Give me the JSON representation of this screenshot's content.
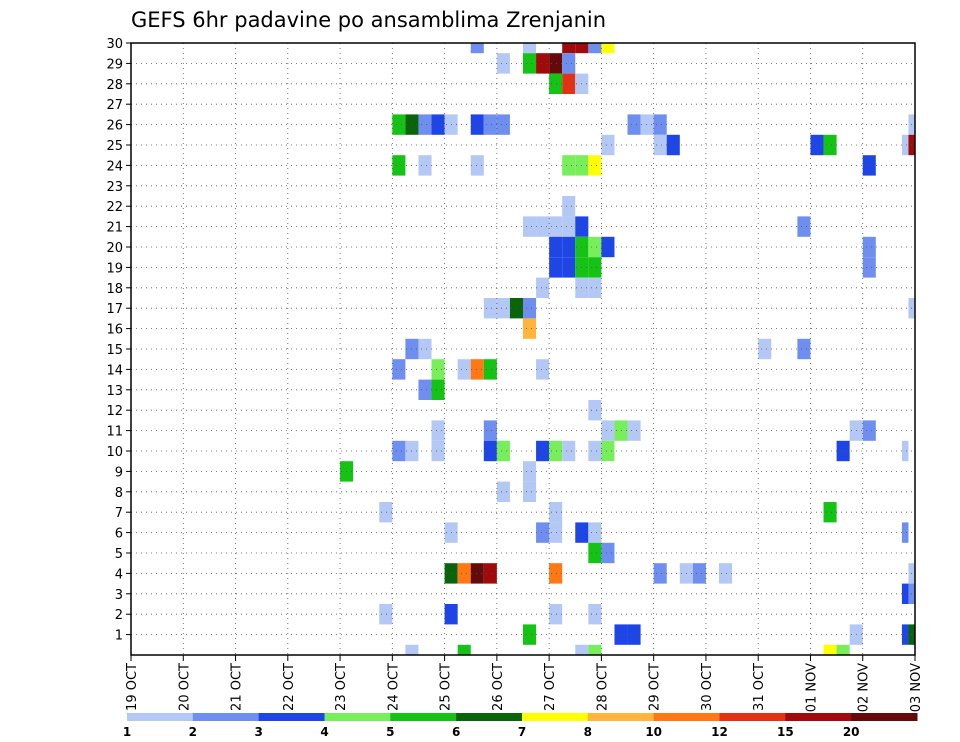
{
  "chart_data": {
    "type": "heatmap",
    "title": "GEFS 6hr padavine po ansamblima Zrenjanin",
    "xlabel": "",
    "ylabel": "",
    "x_labels": [
      "19 OCT",
      "20 OCT",
      "21 OCT",
      "22 OCT",
      "23 OCT",
      "24 OCT",
      "25 OCT",
      "26 OCT",
      "27 OCT",
      "28 OCT",
      "29 OCT",
      "30 OCT",
      "31 OCT",
      "01 NOV",
      "02 NOV",
      "03 NOV"
    ],
    "x_step_label": "6-hour steps (4 per day), step 0 = 19 OCT 00Z",
    "x_range": [
      0,
      60
    ],
    "y_labels": [
      "1",
      "2",
      "3",
      "4",
      "5",
      "6",
      "7",
      "8",
      "9",
      "10",
      "11",
      "12",
      "13",
      "14",
      "15",
      "16",
      "17",
      "18",
      "19",
      "20",
      "21",
      "22",
      "23",
      "24",
      "25",
      "26",
      "27",
      "28",
      "29",
      "30"
    ],
    "y_range": [
      0,
      30
    ],
    "grid": true,
    "legend": {
      "position": "bottom",
      "labels": [
        "1",
        "2",
        "3",
        "4",
        "5",
        "6",
        "7",
        "8",
        "10",
        "12",
        "15",
        "20"
      ],
      "colors": [
        "#b4c8f5",
        "#6e8ef0",
        "#1e46e6",
        "#78ee5a",
        "#14c314",
        "#0a640a",
        "#ffff00",
        "#ffb43c",
        "#ff7814",
        "#e13214",
        "#a00a0a",
        "#640a0a"
      ]
    },
    "cells": [
      {
        "member": 30,
        "step": 26.5,
        "value": 2
      },
      {
        "member": 30,
        "step": 30.5,
        "value": 1
      },
      {
        "member": 30,
        "step": 33.5,
        "value": 15
      },
      {
        "member": 30,
        "step": 34.5,
        "value": 15
      },
      {
        "member": 30,
        "step": 35.5,
        "value": 2
      },
      {
        "member": 30,
        "step": 36.5,
        "value": 7
      },
      {
        "member": 29,
        "step": 28.5,
        "value": 1
      },
      {
        "member": 29,
        "step": 30.5,
        "value": 5
      },
      {
        "member": 29,
        "step": 31.5,
        "value": 15
      },
      {
        "member": 29,
        "step": 32.5,
        "value": 20
      },
      {
        "member": 29,
        "step": 33.5,
        "value": 2
      },
      {
        "member": 28,
        "step": 32.5,
        "value": 5
      },
      {
        "member": 28,
        "step": 33.5,
        "value": 12
      },
      {
        "member": 28,
        "step": 34.5,
        "value": 1
      },
      {
        "member": 26,
        "step": 20.5,
        "value": 5
      },
      {
        "member": 26,
        "step": 21.5,
        "value": 6
      },
      {
        "member": 26,
        "step": 22.5,
        "value": 2
      },
      {
        "member": 26,
        "step": 23.5,
        "value": 3
      },
      {
        "member": 26,
        "step": 24.5,
        "value": 1
      },
      {
        "member": 26,
        "step": 26.5,
        "value": 3
      },
      {
        "member": 26,
        "step": 27.5,
        "value": 2
      },
      {
        "member": 26,
        "step": 28.5,
        "value": 2
      },
      {
        "member": 26,
        "step": 38.5,
        "value": 2
      },
      {
        "member": 26,
        "step": 39.5,
        "value": 1
      },
      {
        "member": 26,
        "step": 40.5,
        "value": 2
      },
      {
        "member": 26,
        "step": 59.75,
        "value": 1
      },
      {
        "member": 25,
        "step": 36.5,
        "value": 1
      },
      {
        "member": 25,
        "step": 40.5,
        "value": 1
      },
      {
        "member": 25,
        "step": 41.5,
        "value": 3
      },
      {
        "member": 25,
        "step": 52.5,
        "value": 3
      },
      {
        "member": 25,
        "step": 53.5,
        "value": 5
      },
      {
        "member": 25,
        "step": 59.25,
        "value": 1
      },
      {
        "member": 25,
        "step": 59.75,
        "value": 15
      },
      {
        "member": 24,
        "step": 20.5,
        "value": 5
      },
      {
        "member": 24,
        "step": 22.5,
        "value": 1
      },
      {
        "member": 24,
        "step": 26.5,
        "value": 1
      },
      {
        "member": 24,
        "step": 33.5,
        "value": 4
      },
      {
        "member": 24,
        "step": 34.5,
        "value": 4
      },
      {
        "member": 24,
        "step": 35.5,
        "value": 7
      },
      {
        "member": 24,
        "step": 56.5,
        "value": 3
      },
      {
        "member": 22,
        "step": 33.5,
        "value": 1
      },
      {
        "member": 21,
        "step": 30.5,
        "value": 1
      },
      {
        "member": 21,
        "step": 31.5,
        "value": 1
      },
      {
        "member": 21,
        "step": 32.5,
        "value": 1
      },
      {
        "member": 21,
        "step": 33.5,
        "value": 1
      },
      {
        "member": 21,
        "step": 34.5,
        "value": 3
      },
      {
        "member": 21,
        "step": 51.5,
        "value": 2
      },
      {
        "member": 20,
        "step": 32.5,
        "value": 3
      },
      {
        "member": 20,
        "step": 33.5,
        "value": 3
      },
      {
        "member": 20,
        "step": 34.5,
        "value": 5
      },
      {
        "member": 20,
        "step": 35.5,
        "value": 4
      },
      {
        "member": 20,
        "step": 36.5,
        "value": 3
      },
      {
        "member": 20,
        "step": 56.5,
        "value": 2
      },
      {
        "member": 19,
        "step": 32.5,
        "value": 3
      },
      {
        "member": 19,
        "step": 33.5,
        "value": 3
      },
      {
        "member": 19,
        "step": 34.5,
        "value": 5
      },
      {
        "member": 19,
        "step": 35.5,
        "value": 5
      },
      {
        "member": 19,
        "step": 56.5,
        "value": 2
      },
      {
        "member": 18,
        "step": 31.5,
        "value": 1
      },
      {
        "member": 18,
        "step": 34.5,
        "value": 1
      },
      {
        "member": 18,
        "step": 35.5,
        "value": 1
      },
      {
        "member": 17,
        "step": 27.5,
        "value": 1
      },
      {
        "member": 17,
        "step": 28.5,
        "value": 1
      },
      {
        "member": 17,
        "step": 29.5,
        "value": 6
      },
      {
        "member": 17,
        "step": 30.5,
        "value": 2
      },
      {
        "member": 17,
        "step": 59.75,
        "value": 1
      },
      {
        "member": 16,
        "step": 30.5,
        "value": 8
      },
      {
        "member": 15,
        "step": 21.5,
        "value": 2
      },
      {
        "member": 15,
        "step": 22.5,
        "value": 1
      },
      {
        "member": 15,
        "step": 48.5,
        "value": 1
      },
      {
        "member": 15,
        "step": 51.5,
        "value": 2
      },
      {
        "member": 14,
        "step": 20.5,
        "value": 2
      },
      {
        "member": 14,
        "step": 23.5,
        "value": 4
      },
      {
        "member": 14,
        "step": 25.5,
        "value": 1
      },
      {
        "member": 14,
        "step": 26.5,
        "value": 10
      },
      {
        "member": 14,
        "step": 27.5,
        "value": 5
      },
      {
        "member": 14,
        "step": 31.5,
        "value": 1
      },
      {
        "member": 13,
        "step": 22.5,
        "value": 2
      },
      {
        "member": 13,
        "step": 23.5,
        "value": 5
      },
      {
        "member": 12,
        "step": 35.5,
        "value": 1
      },
      {
        "member": 11,
        "step": 23.5,
        "value": 1
      },
      {
        "member": 11,
        "step": 27.5,
        "value": 2
      },
      {
        "member": 11,
        "step": 36.5,
        "value": 1
      },
      {
        "member": 11,
        "step": 37.5,
        "value": 4
      },
      {
        "member": 11,
        "step": 38.5,
        "value": 1
      },
      {
        "member": 11,
        "step": 56.5,
        "value": 2
      },
      {
        "member": 11,
        "step": 55.5,
        "value": 1
      },
      {
        "member": 10,
        "step": 20.5,
        "value": 2
      },
      {
        "member": 10,
        "step": 21.5,
        "value": 1
      },
      {
        "member": 10,
        "step": 23.5,
        "value": 1
      },
      {
        "member": 10,
        "step": 27.5,
        "value": 3
      },
      {
        "member": 10,
        "step": 28.5,
        "value": 4
      },
      {
        "member": 10,
        "step": 31.5,
        "value": 3
      },
      {
        "member": 10,
        "step": 32.5,
        "value": 4
      },
      {
        "member": 10,
        "step": 33.5,
        "value": 1
      },
      {
        "member": 10,
        "step": 35.5,
        "value": 1
      },
      {
        "member": 10,
        "step": 36.5,
        "value": 4
      },
      {
        "member": 10,
        "step": 54.5,
        "value": 3
      },
      {
        "member": 10,
        "step": 59.25,
        "value": 1
      },
      {
        "member": 9,
        "step": 16.5,
        "value": 5
      },
      {
        "member": 9,
        "step": 30.5,
        "value": 1
      },
      {
        "member": 8,
        "step": 28.5,
        "value": 1
      },
      {
        "member": 8,
        "step": 30.5,
        "value": 1
      },
      {
        "member": 7,
        "step": 19.5,
        "value": 1
      },
      {
        "member": 7,
        "step": 32.5,
        "value": 1
      },
      {
        "member": 7,
        "step": 53.5,
        "value": 5
      },
      {
        "member": 6,
        "step": 24.5,
        "value": 1
      },
      {
        "member": 6,
        "step": 31.5,
        "value": 2
      },
      {
        "member": 6,
        "step": 32.5,
        "value": 1
      },
      {
        "member": 6,
        "step": 34.5,
        "value": 3
      },
      {
        "member": 6,
        "step": 35.5,
        "value": 1
      },
      {
        "member": 6,
        "step": 59.25,
        "value": 2
      },
      {
        "member": 5,
        "step": 35.5,
        "value": 5
      },
      {
        "member": 5,
        "step": 36.5,
        "value": 2
      },
      {
        "member": 4,
        "step": 24.5,
        "value": 6
      },
      {
        "member": 4,
        "step": 25.5,
        "value": 10
      },
      {
        "member": 4,
        "step": 26.5,
        "value": 20
      },
      {
        "member": 4,
        "step": 27.5,
        "value": 15
      },
      {
        "member": 4,
        "step": 32.5,
        "value": 10
      },
      {
        "member": 4,
        "step": 40.5,
        "value": 2
      },
      {
        "member": 4,
        "step": 42.5,
        "value": 1
      },
      {
        "member": 4,
        "step": 43.5,
        "value": 2
      },
      {
        "member": 4,
        "step": 45.5,
        "value": 1
      },
      {
        "member": 4,
        "step": 59.75,
        "value": 1
      },
      {
        "member": 3,
        "step": 59.25,
        "value": 3
      },
      {
        "member": 3,
        "step": 59.75,
        "value": 2
      },
      {
        "member": 2,
        "step": 19.5,
        "value": 1
      },
      {
        "member": 2,
        "step": 24.5,
        "value": 3
      },
      {
        "member": 2,
        "step": 32.5,
        "value": 1
      },
      {
        "member": 2,
        "step": 35.5,
        "value": 1
      },
      {
        "member": 1,
        "step": 30.5,
        "value": 5
      },
      {
        "member": 1,
        "step": 37.5,
        "value": 3
      },
      {
        "member": 1,
        "step": 38.5,
        "value": 3
      },
      {
        "member": 1,
        "step": 55.5,
        "value": 1
      },
      {
        "member": 1,
        "step": 59.25,
        "value": 3
      },
      {
        "member": 1,
        "step": 59.75,
        "value": 6
      },
      {
        "member": 0,
        "step": 21.5,
        "value": 1
      },
      {
        "member": 0,
        "step": 25.5,
        "value": 5
      },
      {
        "member": 0,
        "step": 34.5,
        "value": 1
      },
      {
        "member": 0,
        "step": 35.5,
        "value": 4
      },
      {
        "member": 0,
        "step": 53.5,
        "value": 7
      },
      {
        "member": 0,
        "step": 54.5,
        "value": 4
      }
    ]
  }
}
